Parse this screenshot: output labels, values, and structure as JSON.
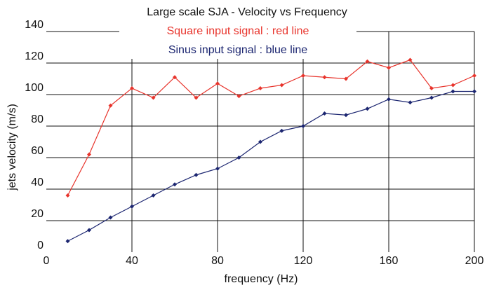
{
  "chart_data": {
    "type": "line",
    "title": "Large scale SJA - Velocity vs Frequency",
    "x_label": "frequency (Hz)",
    "y_label": "jets velocity (m/s)",
    "x": [
      10,
      20,
      30,
      40,
      50,
      60,
      70,
      80,
      90,
      100,
      110,
      120,
      130,
      140,
      150,
      160,
      170,
      180,
      190,
      200
    ],
    "series": [
      {
        "name": "Square input signal : red line",
        "color": "#e8342c",
        "values": [
          36,
          62,
          93,
          104,
          98,
          111,
          98,
          107,
          99,
          104,
          106,
          112,
          111,
          110,
          121,
          117,
          122,
          104,
          106,
          112
        ]
      },
      {
        "name": "Sinus input signal : blue line",
        "color": "#1b2570",
        "values": [
          7,
          14,
          22,
          29,
          36,
          43,
          49,
          53,
          60,
          70,
          77,
          80,
          88,
          87,
          91,
          97,
          95,
          98,
          102,
          102
        ]
      }
    ],
    "xlim": [
      0,
      200
    ],
    "xticks": [
      0,
      40,
      80,
      120,
      160,
      200
    ],
    "ylim": [
      0,
      140
    ],
    "yticks": [
      0,
      20,
      40,
      60,
      80,
      100,
      120,
      140
    ],
    "grid": true
  }
}
